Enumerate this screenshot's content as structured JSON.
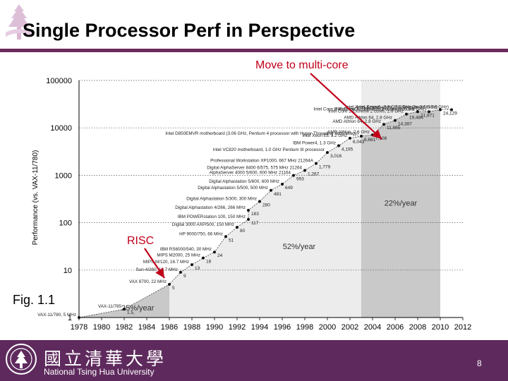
{
  "slide": {
    "title": "Single Processor Perf in Perspective",
    "annotation_top": "Move to multi-core",
    "annotation_risc": "RISC",
    "figure_label": "Fig. 1.1",
    "page_number": "8"
  },
  "footer": {
    "university_cn": "國立清華大學",
    "university_en": "National Tsing Hua University"
  },
  "colors": {
    "title_rule": "#6b2a5c",
    "footer_bg": "#5e2a5d",
    "annotation": "#c0001a",
    "region_light": "#ececec",
    "region_dark": "#c9c9c9"
  },
  "chart_data": {
    "type": "scatter",
    "y_scale": "log",
    "ylim": [
      1,
      100000
    ],
    "xlim": [
      1978,
      2012
    ],
    "x_ticks": [
      "1978",
      "1980",
      "1982",
      "1984",
      "1986",
      "1988",
      "1990",
      "1992",
      "1994",
      "1996",
      "1998",
      "2000",
      "2002",
      "2004",
      "2006",
      "2008",
      "2010",
      "2012"
    ],
    "y_ticks": [
      "1",
      "10",
      "100",
      "1000",
      "10000",
      "100000"
    ],
    "ylabel": "Performance (vs. VAX-11/780)",
    "growth_rates": [
      {
        "label": "25%/year",
        "from": 1978,
        "to": 1986
      },
      {
        "label": "52%/year",
        "from": 1986,
        "to": 2003
      },
      {
        "label": "22%/year",
        "from": 2003,
        "to": 2010
      }
    ],
    "points": [
      {
        "x": 1978,
        "y": 1,
        "label": "VAX-11/780, 5 MHz",
        "value": ""
      },
      {
        "x": 1982,
        "y": 1.5,
        "label": "VAX-11/785",
        "value": "1.5,"
      },
      {
        "x": 1986,
        "y": 5,
        "label": "VAX 8700, 22 MHz",
        "value": "5"
      },
      {
        "x": 1987,
        "y": 9,
        "label": "Sun-4/260, 16.7 MHz",
        "value": "9"
      },
      {
        "x": 1988,
        "y": 13,
        "label": "MIPS M/120, 16.7 MHz",
        "value": "13"
      },
      {
        "x": 1989,
        "y": 18,
        "label": "MIPS M2000, 25 MHz",
        "value": "18"
      },
      {
        "x": 1990,
        "y": 24,
        "label": "IBM RS6000/540, 30 MHz",
        "value": "24"
      },
      {
        "x": 1991,
        "y": 51,
        "label": "HP 9000/750, 66 MHz",
        "value": "51"
      },
      {
        "x": 1992,
        "y": 80,
        "label": "Digital 3000 AXP/500, 150 MHz",
        "value": "80"
      },
      {
        "x": 1993,
        "y": 117,
        "label": "IBM POWERstation 100, 150 MHz",
        "value": "117"
      },
      {
        "x": 1993,
        "y": 183,
        "label": "Digital Alphastation 4/266, 266 MHz",
        "value": "183"
      },
      {
        "x": 1994,
        "y": 280,
        "label": "Digital Alphastation 5/300, 300 MHz",
        "value": "280"
      },
      {
        "x": 1995,
        "y": 481,
        "label": "Digital Alphastation 5/500, 500 MHz",
        "value": "481"
      },
      {
        "x": 1996,
        "y": 649,
        "label": "Digital Alphastation 5/600, 600 MHz",
        "value": "649"
      },
      {
        "x": 1997,
        "y": 993,
        "label": "AlphaServer 4000 5/600, 600 MHz 21164",
        "value": "993"
      },
      {
        "x": 1998,
        "y": 1267,
        "label": "Digital AlphaServer 8400 6/575, 575 MHz 21264",
        "value": "1,267"
      },
      {
        "x": 1999,
        "y": 1779,
        "label": "Professional Workstation XP1000, 667 MHz 21264A",
        "value": "1,779"
      },
      {
        "x": 2000,
        "y": 3016,
        "label": "Intel VC820 motherboard, 1.0 GHz Pentium III processor",
        "value": "3,016"
      },
      {
        "x": 2001,
        "y": 4195,
        "label": "IBM Power4, 1.3 GHz",
        "value": "4,195"
      },
      {
        "x": 2002,
        "y": 6043,
        "label": "Intel Xeon EE 3.2 GHz",
        "value": "6,043"
      },
      {
        "x": 2003,
        "y": 6681,
        "label": "Intel D850EMVR motherboard (3.06 GHz, Pentium 4 processor with Hyper-Threading Technology)",
        "value": "6,681"
      },
      {
        "x": 2004,
        "y": 7108,
        "label": "AMD Athlon, 2.6 GHz",
        "value": "7,108"
      },
      {
        "x": 2005,
        "y": 11865,
        "label": "AMD Athlon 64, 2.8 GHz",
        "value": "11,865"
      },
      {
        "x": 2006,
        "y": 14387,
        "label": "AMD Athlon 64, 2.8 GHz",
        "value": "14,387"
      },
      {
        "x": 2007,
        "y": 19484,
        "label": "Intel Core 2 Extreme 2 cores, 2.9 GHz",
        "value": "19,484"
      },
      {
        "x": 2008,
        "y": 21871,
        "label": "Intel Core Duo Extreme 2 cores, 3.0 GHz",
        "value": "21,871"
      },
      {
        "x": 2009,
        "y": 21871,
        "label": "Intel Core i7 Extreme 4 cores 3.2 GHz (boost to 3.5 GHz)",
        "value": ""
      },
      {
        "x": 2010,
        "y": 24129,
        "label": "Intel Xeon 4 cores, 3.3 GHz (boost to 3.6 GHz)",
        "value": "24,129"
      },
      {
        "x": 2011,
        "y": 24129,
        "label": "Intel Xeon 6 cores, 3.3 GHz (boost to 3.6 GHz)",
        "value": ""
      }
    ]
  }
}
